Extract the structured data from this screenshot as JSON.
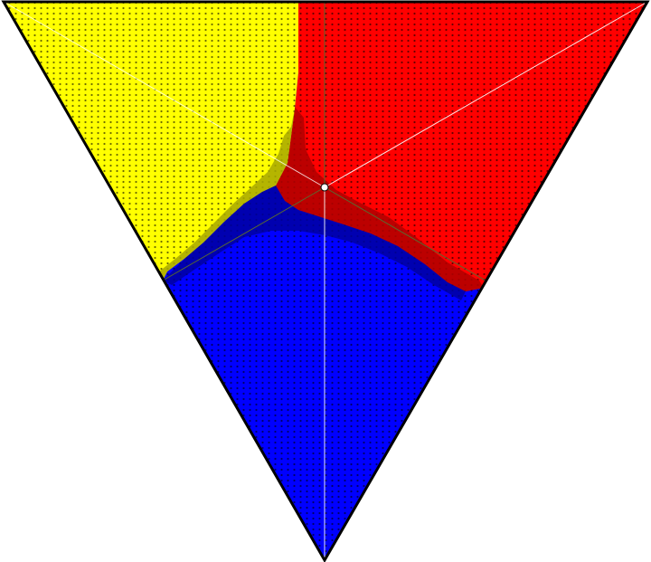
{
  "figure": {
    "kind": "ternary simplex region plot",
    "region_colors": {
      "top_left": "#ffff00",
      "top_right": "#ff0000",
      "bottom": "#0000ff"
    },
    "region_dark_colors": {
      "top_left": "#b0b000",
      "top_right": "#b00000",
      "bottom": "#00009c"
    },
    "outline_color": "#000000",
    "guide_line_color": "#ffffff",
    "divider_line_color": "#5a6a30",
    "center_marker": "white-circle"
  }
}
